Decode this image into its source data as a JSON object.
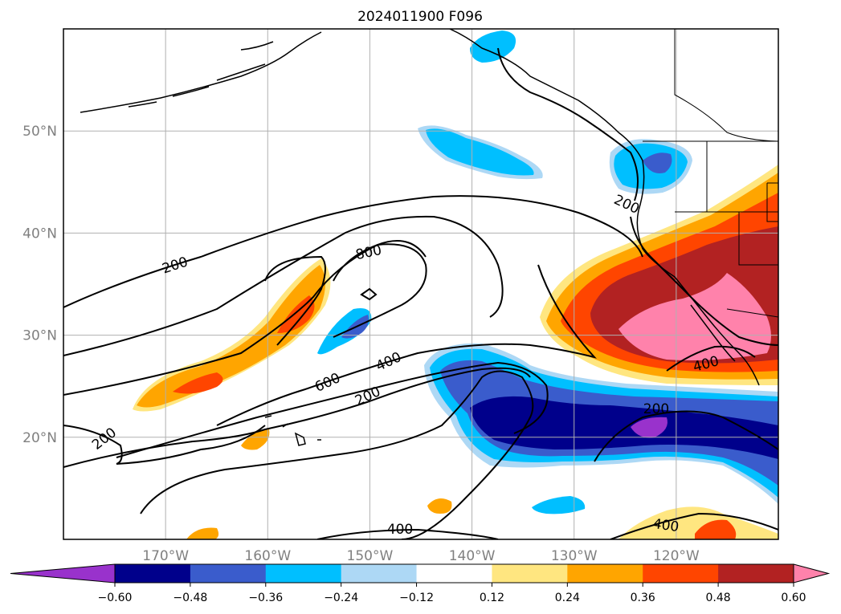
{
  "title": "2024011900 F096",
  "map": {
    "lon_range": [
      -180,
      -110
    ],
    "lat_range": [
      10,
      60
    ],
    "lon_ticks": [
      {
        "value": -170,
        "label": "170°W"
      },
      {
        "value": -160,
        "label": "160°W"
      },
      {
        "value": -150,
        "label": "150°W"
      },
      {
        "value": -140,
        "label": "140°W"
      },
      {
        "value": -130,
        "label": "130°W"
      },
      {
        "value": -120,
        "label": "120°W"
      }
    ],
    "lat_ticks": [
      {
        "value": 20,
        "label": "20°N"
      },
      {
        "value": 30,
        "label": "30°N"
      },
      {
        "value": 40,
        "label": "40°N"
      },
      {
        "value": 50,
        "label": "50°N"
      }
    ],
    "gridlines": true,
    "contour_color": "#000000"
  },
  "colorbar": {
    "extend": "both",
    "tick_labels": [
      "−0.60",
      "−0.48",
      "−0.36",
      "−0.24",
      "−0.12",
      "0.12",
      "0.24",
      "0.36",
      "0.48",
      "0.60"
    ],
    "colors": [
      "#9932cc",
      "#00008b",
      "#3a5ccc",
      "#00bfff",
      "#add8f5",
      "#ffffff",
      "#ffe680",
      "#ffa500",
      "#ff4500",
      "#b22222",
      "#ff82ab"
    ]
  },
  "contour_labels": [
    "200",
    "200",
    "200",
    "200",
    "400",
    "400",
    "400",
    "400",
    "600",
    "800",
    "200"
  ]
}
